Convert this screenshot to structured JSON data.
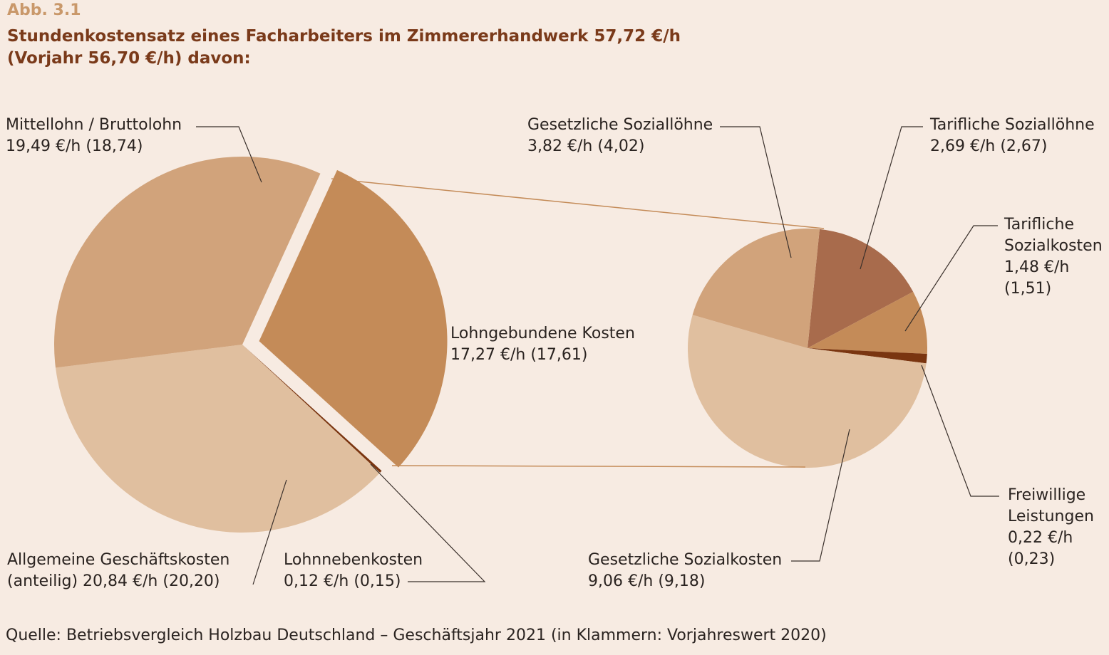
{
  "figure_number": "Abb. 3.1",
  "title_line1": "Stundenkostensatz eines Facharbeiters im Zimmererhandwerk 57,72 €/h",
  "title_line2": "(Vorjahr 56,70 €/h) davon:",
  "source": "Quelle: Betriebsvergleich Holzbau Deutschland – Geschäftsjahr 2021 (in Klammern: Vorjahreswert 2020)",
  "labels": {
    "mittellohn": {
      "name": "Mittellohn / Bruttolohn",
      "value": "19,49 €/h (18,74)"
    },
    "lohngebunden": {
      "name": "Lohngebundene Kosten",
      "value": "17,27 €/h (17,61)"
    },
    "allgemein": {
      "line1": "Allgemeine Geschäftskosten",
      "line2": "(anteilig) 20,84 €/h (20,20)"
    },
    "lohnneben": {
      "name": "Lohnnebenkosten",
      "value": "0,12 €/h (0,15)"
    },
    "gesetzl_soziallohne": {
      "name": "Gesetzliche Soziallöhne",
      "value": "3,82 €/h (4,02)"
    },
    "tarifl_soziallohne": {
      "name": "Tarifliche Soziallöhne",
      "value": "2,69 €/h (2,67)"
    },
    "tarifl_sozialkosten": {
      "line1": "Tarifliche",
      "line2": "Sozialkosten",
      "line3": "1,48 €/h",
      "line4": "(1,51)"
    },
    "freiwillig": {
      "line1": "Freiwillige",
      "line2": "Leistungen",
      "line3": "0,22 €/h",
      "line4": "(0,23)"
    },
    "gesetzl_sozialkosten": {
      "name": "Gesetzliche Sozialkosten",
      "value": "9,06 €/h (9,18)"
    }
  },
  "chart_data": [
    {
      "type": "pie",
      "slices": [
        {
          "key": "lohngebunden",
          "value": 17.27,
          "previous": 17.61,
          "color": "#c48b58",
          "exploded": true
        },
        {
          "key": "lohnneben",
          "value": 0.12,
          "previous": 0.15,
          "color": "#7a3510"
        },
        {
          "key": "allgemein",
          "value": 20.84,
          "previous": 20.2,
          "color": "#e0bf9f"
        },
        {
          "key": "mittellohn",
          "value": 19.49,
          "previous": 18.74,
          "color": "#d1a37b"
        }
      ]
    },
    {
      "type": "pie",
      "slices": [
        {
          "key": "tarifl_soziallohne",
          "value": 2.69,
          "previous": 2.67,
          "color": "#a86b4c"
        },
        {
          "key": "tarifl_sozialkosten",
          "value": 1.48,
          "previous": 1.51,
          "color": "#c48b58"
        },
        {
          "key": "freiwillig",
          "value": 0.22,
          "previous": 0.23,
          "color": "#7a3510"
        },
        {
          "key": "gesetzl_sozialkosten",
          "value": 9.06,
          "previous": 9.18,
          "color": "#e0bf9f"
        },
        {
          "key": "gesetzl_soziallohne",
          "value": 3.82,
          "previous": 4.02,
          "color": "#d1a37b"
        }
      ]
    }
  ]
}
